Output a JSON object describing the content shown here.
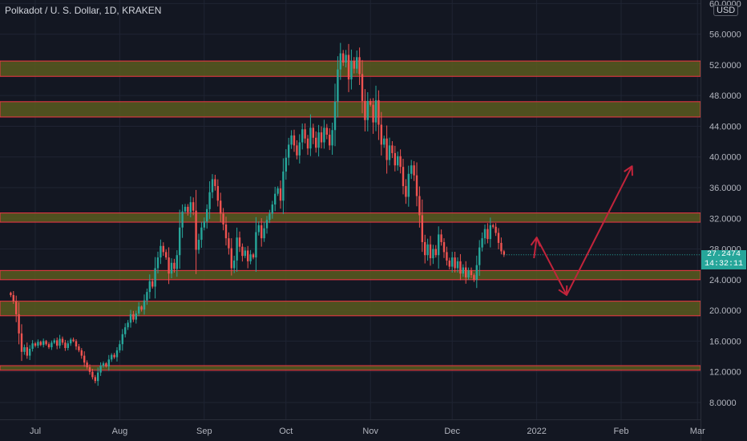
{
  "header": {
    "title": "Polkadot / U. S. Dollar, 1D, KRAKEN",
    "currency": "USD"
  },
  "price_tag": {
    "price": "27.2474",
    "countdown": "14:32:11"
  },
  "chart_data": {
    "type": "candlestick",
    "title": "Polkadot / U. S. Dollar, 1D, KRAKEN",
    "xlabel": "",
    "ylabel": "",
    "grid": true,
    "ylim": [
      4,
      60
    ],
    "y_ticks": [
      "8.0000",
      "12.0000",
      "16.0000",
      "20.0000",
      "24.0000",
      "28.0000",
      "32.0000",
      "36.0000",
      "40.0000",
      "44.0000",
      "48.0000",
      "52.0000",
      "56.0000",
      "60.0000"
    ],
    "x_ticks": [
      {
        "label": "Jul",
        "date": "2021-07-01"
      },
      {
        "label": "Aug",
        "date": "2021-08-01"
      },
      {
        "label": "Sep",
        "date": "2021-09-01"
      },
      {
        "label": "Oct",
        "date": "2021-10-01"
      },
      {
        "label": "Nov",
        "date": "2021-11-01"
      },
      {
        "label": "Dec",
        "date": "2021-12-01"
      },
      {
        "label": "2022",
        "date": "2022-01-01"
      },
      {
        "label": "Feb",
        "date": "2022-02-01"
      },
      {
        "label": "Mar",
        "date": "2022-03-01"
      }
    ],
    "last_price": 27.2474,
    "start_date": "2021-06-22",
    "closes": [
      22.0,
      21.2,
      19.5,
      17.0,
      14.6,
      15.2,
      14.1,
      15.0,
      15.7,
      15.4,
      15.9,
      15.5,
      16.0,
      15.6,
      15.2,
      15.8,
      16.1,
      15.4,
      16.3,
      15.8,
      15.1,
      15.7,
      16.2,
      16.0,
      15.3,
      14.8,
      14.1,
      13.2,
      12.6,
      12.0,
      11.3,
      10.8,
      11.9,
      12.8,
      13.1,
      12.7,
      13.6,
      14.2,
      13.9,
      14.8,
      15.6,
      16.9,
      17.8,
      18.4,
      19.5,
      18.8,
      19.6,
      20.5,
      20.1,
      21.3,
      22.4,
      23.8,
      23.1,
      25.5,
      26.9,
      28.4,
      27.6,
      26.9,
      24.8,
      26.2,
      25.4,
      27.2,
      30.8,
      32.9,
      33.5,
      32.8,
      34.1,
      33.0,
      27.9,
      29.2,
      30.8,
      31.6,
      33.2,
      35.4,
      37.1,
      36.2,
      34.3,
      32.6,
      31.2,
      29.4,
      28.1,
      25.5,
      26.5,
      29.5,
      28.3,
      27.1,
      27.8,
      26.4,
      27.3,
      26.9,
      30.2,
      31.1,
      29.4,
      30.7,
      31.8,
      32.6,
      33.8,
      35.2,
      35.9,
      34.3,
      38.1,
      39.9,
      41.6,
      42.8,
      41.5,
      40.2,
      41.9,
      43.6,
      42.4,
      41.1,
      43.8,
      42.5,
      41.2,
      43.2,
      41.9,
      43.8,
      42.9,
      41.5,
      43.5,
      47.2,
      51.4,
      53.5,
      52.3,
      53.3,
      50.1,
      52.5,
      51.5,
      53.0,
      50.8,
      47.3,
      44.8,
      47.3,
      46.8,
      44.5,
      47.4,
      44.2,
      41.6,
      42.4,
      39.6,
      41.5,
      40.5,
      38.9,
      40.1,
      38.7,
      36.2,
      34.8,
      37.8,
      38.9,
      37.6,
      34.9,
      32.4,
      28.9,
      27.2,
      28.6,
      26.8,
      28.0,
      27.2,
      29.9,
      28.9,
      27.6,
      26.5,
      25.7,
      26.9,
      25.5,
      26.4,
      24.8,
      25.6,
      24.3,
      25.2,
      24.6,
      24.0,
      25.9,
      28.2,
      29.4,
      30.6,
      29.3,
      31.1,
      30.9,
      30.1,
      28.8,
      27.7,
      27.2474
    ],
    "zones": [
      [
        50.5,
        52.5
      ],
      [
        45.2,
        47.2
      ],
      [
        31.5,
        32.7
      ],
      [
        24.0,
        25.2
      ],
      [
        19.3,
        21.2
      ],
      [
        12.2,
        12.8
      ]
    ],
    "projection": [
      {
        "date": "2021-12-31",
        "price": 26.8
      },
      {
        "date": "2022-01-01",
        "price": 29.5
      },
      {
        "date": "2022-01-12",
        "price": 22.0
      },
      {
        "date": "2022-02-05",
        "price": 38.8
      }
    ]
  }
}
